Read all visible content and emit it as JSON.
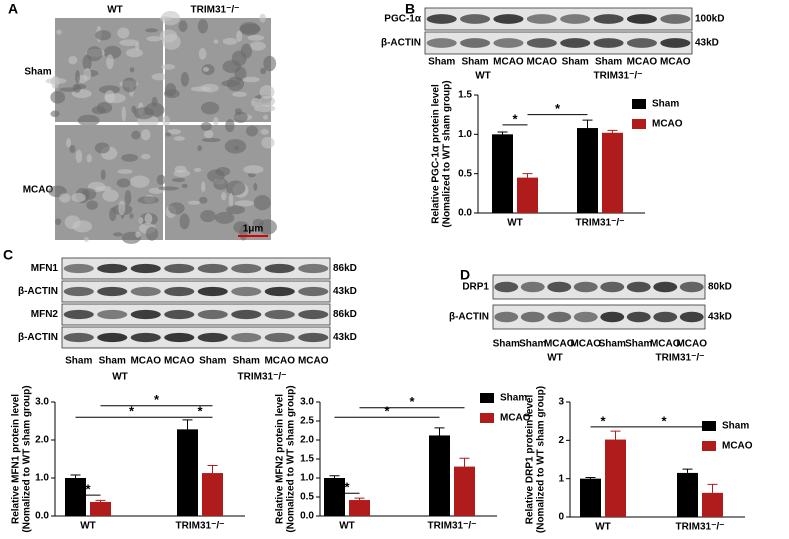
{
  "panel_labels": [
    "A",
    "B",
    "C",
    "D"
  ],
  "micrograph": {
    "columns": [
      "WT",
      "TRIM31⁻/⁻"
    ],
    "rows": [
      "Sham",
      "MCAO"
    ],
    "scale_bar": "1μm"
  },
  "blots": [
    {
      "rows": [
        {
          "label": "PGC-1α",
          "size": "100kD"
        },
        {
          "label": "β-ACTIN",
          "size": "43kD"
        }
      ],
      "lanes": [
        "Sham",
        "Sham",
        "MCAO",
        "MCAO",
        "Sham",
        "Sham",
        "MCAO",
        "MCAO"
      ],
      "groups": [
        "WT",
        "TRIM31⁻/⁻"
      ]
    },
    {
      "rows": [
        {
          "label": "MFN1",
          "size": "86kD"
        },
        {
          "label": "β-ACTIN",
          "size": "43kD"
        },
        {
          "label": "MFN2",
          "size": "86kD"
        },
        {
          "label": "β-ACTIN",
          "size": "43kD"
        }
      ],
      "lanes": [
        "Sham",
        "Sham",
        "MCAO",
        "MCAO",
        "Sham",
        "Sham",
        "MCAO",
        "MCAO"
      ],
      "groups": [
        "WT",
        "TRIM31⁻/⁻"
      ]
    },
    {
      "rows": [
        {
          "label": "DRP1",
          "size": "80kD"
        },
        {
          "label": "β-ACTIN",
          "size": "43kD"
        }
      ],
      "lanes": [
        "Sham",
        "Sham",
        "MCAO",
        "MCAO",
        "Sham",
        "Sham",
        "MCAO",
        "MCAO"
      ],
      "groups": [
        "WT",
        "TRIM31⁻/⁻"
      ]
    }
  ],
  "chart_data": [
    {
      "type": "bar",
      "ylabel": [
        "Relative PGC-1α protein level",
        "(Nomalized to WT sham group)"
      ],
      "categories": [
        "WT",
        "TRIM31⁻/⁻"
      ],
      "series": [
        {
          "name": "Sham",
          "color": "#000000",
          "values": [
            1.0,
            1.08
          ],
          "errors": [
            0.03,
            0.1
          ]
        },
        {
          "name": "MCAO",
          "color": "#b01c1c",
          "values": [
            0.45,
            1.02
          ],
          "errors": [
            0.05,
            0.03
          ]
        }
      ],
      "ylim": [
        0,
        1.5
      ],
      "yticks": [
        {
          "value": 0,
          "label": "0.0"
        },
        0.5,
        {
          "value": 1,
          "label": "1.0"
        },
        1.5
      ],
      "legend": "upper right",
      "annotations": [
        "*",
        "*"
      ]
    },
    {
      "type": "bar",
      "ylabel": [
        "Relative MFN1 protein level",
        "(Nomalized to WT sham group)"
      ],
      "categories": [
        "WT",
        "TRIM31⁻/⁻"
      ],
      "series": [
        {
          "name": "Sham",
          "color": "#000000",
          "values": [
            1.0,
            2.28
          ],
          "errors": [
            0.08,
            0.25
          ]
        },
        {
          "name": "MCAO",
          "color": "#b01c1c",
          "values": [
            0.37,
            1.13
          ],
          "errors": [
            0.04,
            0.2
          ]
        }
      ],
      "ylim": [
        0,
        3
      ],
      "yticks": [
        {
          "value": 0,
          "label": "0.0"
        },
        {
          "value": 1,
          "label": "1.0"
        },
        {
          "value": 2,
          "label": "2.0"
        },
        {
          "value": 3,
          "label": "3.0"
        }
      ],
      "legend": "none",
      "annotations": [
        "*",
        "*",
        "*",
        "*"
      ]
    },
    {
      "type": "bar",
      "ylabel": [
        "Relative MFN2 protein level",
        "(Nomalized to WT sham group)"
      ],
      "categories": [
        "WT",
        "TRIM31⁻/⁻"
      ],
      "series": [
        {
          "name": "Sham",
          "color": "#000000",
          "values": [
            1.0,
            2.12
          ],
          "errors": [
            0.06,
            0.2
          ]
        },
        {
          "name": "MCAO",
          "color": "#b01c1c",
          "values": [
            0.42,
            1.3
          ],
          "errors": [
            0.05,
            0.22
          ]
        }
      ],
      "ylim": [
        0,
        3
      ],
      "yticks": [
        {
          "value": 0,
          "label": "0.0"
        },
        0.5,
        {
          "value": 1,
          "label": "1.0"
        },
        1.5,
        {
          "value": 2,
          "label": "2.0"
        },
        2.5,
        {
          "value": 3,
          "label": "3.0"
        }
      ],
      "legend": "upper right",
      "annotations": [
        "*",
        "*",
        "*"
      ]
    },
    {
      "type": "bar",
      "ylabel": [
        "Relative DRP1 protein level",
        "(Nomalized to WT sham group)"
      ],
      "categories": [
        "WT",
        "TRIM31⁻/⁻"
      ],
      "series": [
        {
          "name": "Sham",
          "color": "#000000",
          "values": [
            1.0,
            1.15
          ],
          "errors": [
            0.03,
            0.1
          ]
        },
        {
          "name": "MCAO",
          "color": "#b01c1c",
          "values": [
            2.02,
            0.63
          ],
          "errors": [
            0.22,
            0.22
          ]
        }
      ],
      "ylim": [
        0,
        3
      ],
      "yticks": [
        0,
        1,
        2,
        3
      ],
      "legend": "upper right",
      "annotations": [
        "*",
        "*"
      ]
    }
  ]
}
